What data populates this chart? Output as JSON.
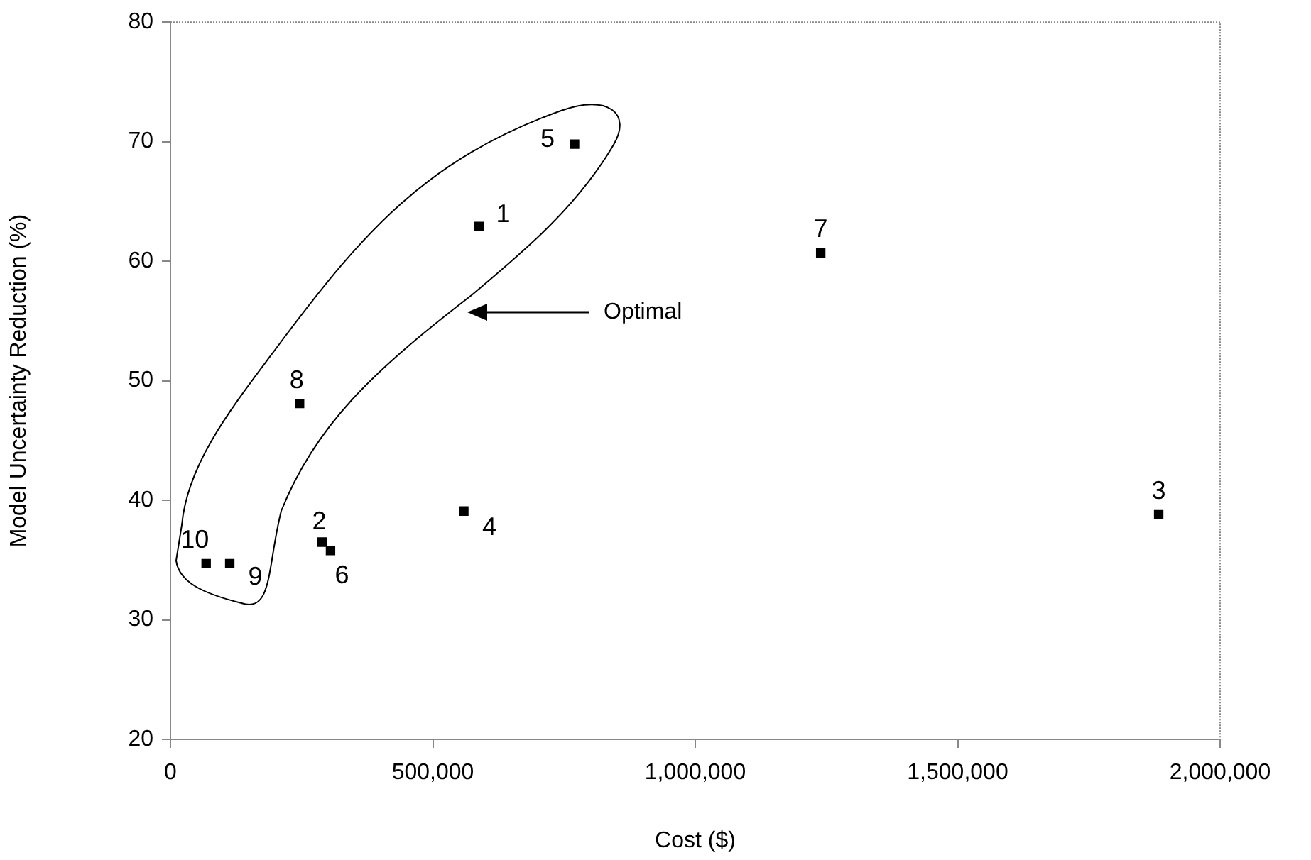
{
  "chart_data": {
    "type": "scatter",
    "xlabel": "Cost ($)",
    "ylabel": "Model Uncertainty Reduction (%)",
    "series": [
      {
        "name": "1",
        "color": "#000000",
        "x": [
          588000
        ],
        "values": [
          62.9
        ]
      },
      {
        "name": "2",
        "color": "#000000",
        "x": [
          289000
        ],
        "values": [
          36.5
        ]
      },
      {
        "name": "3",
        "color": "#000000",
        "x": [
          1883000
        ],
        "values": [
          38.8
        ]
      },
      {
        "name": "4",
        "color": "#000000",
        "x": [
          559000
        ],
        "values": [
          39.1
        ]
      },
      {
        "name": "5",
        "color": "#000000",
        "x": [
          770000
        ],
        "values": [
          69.8
        ]
      },
      {
        "name": "6",
        "color": "#000000",
        "x": [
          305000
        ],
        "values": [
          35.8
        ]
      },
      {
        "name": "7",
        "color": "#000000",
        "x": [
          1239000
        ],
        "values": [
          60.7
        ]
      },
      {
        "name": "8",
        "color": "#000000",
        "x": [
          246000
        ],
        "values": [
          48.1
        ]
      },
      {
        "name": "9",
        "color": "#000000",
        "x": [
          113000
        ],
        "values": [
          34.7
        ]
      },
      {
        "name": "10",
        "color": "#000000",
        "x": [
          68000
        ],
        "values": [
          34.7
        ]
      }
    ],
    "marker": "square",
    "grid": false,
    "legend": false,
    "xlim": [
      0,
      2000000
    ],
    "xticks": [
      {
        "value": 0,
        "label": "0"
      },
      {
        "value": 500000,
        "label": "500,000"
      },
      {
        "value": 1000000,
        "label": "1,000,000"
      },
      {
        "value": 1500000,
        "label": "1,500,000"
      },
      {
        "value": 2000000,
        "label": "2,000,000"
      }
    ],
    "ylim": [
      20,
      80
    ],
    "yticks": [
      20,
      30,
      40,
      50,
      60,
      70,
      80
    ],
    "annotations": [
      "Optimal"
    ]
  }
}
